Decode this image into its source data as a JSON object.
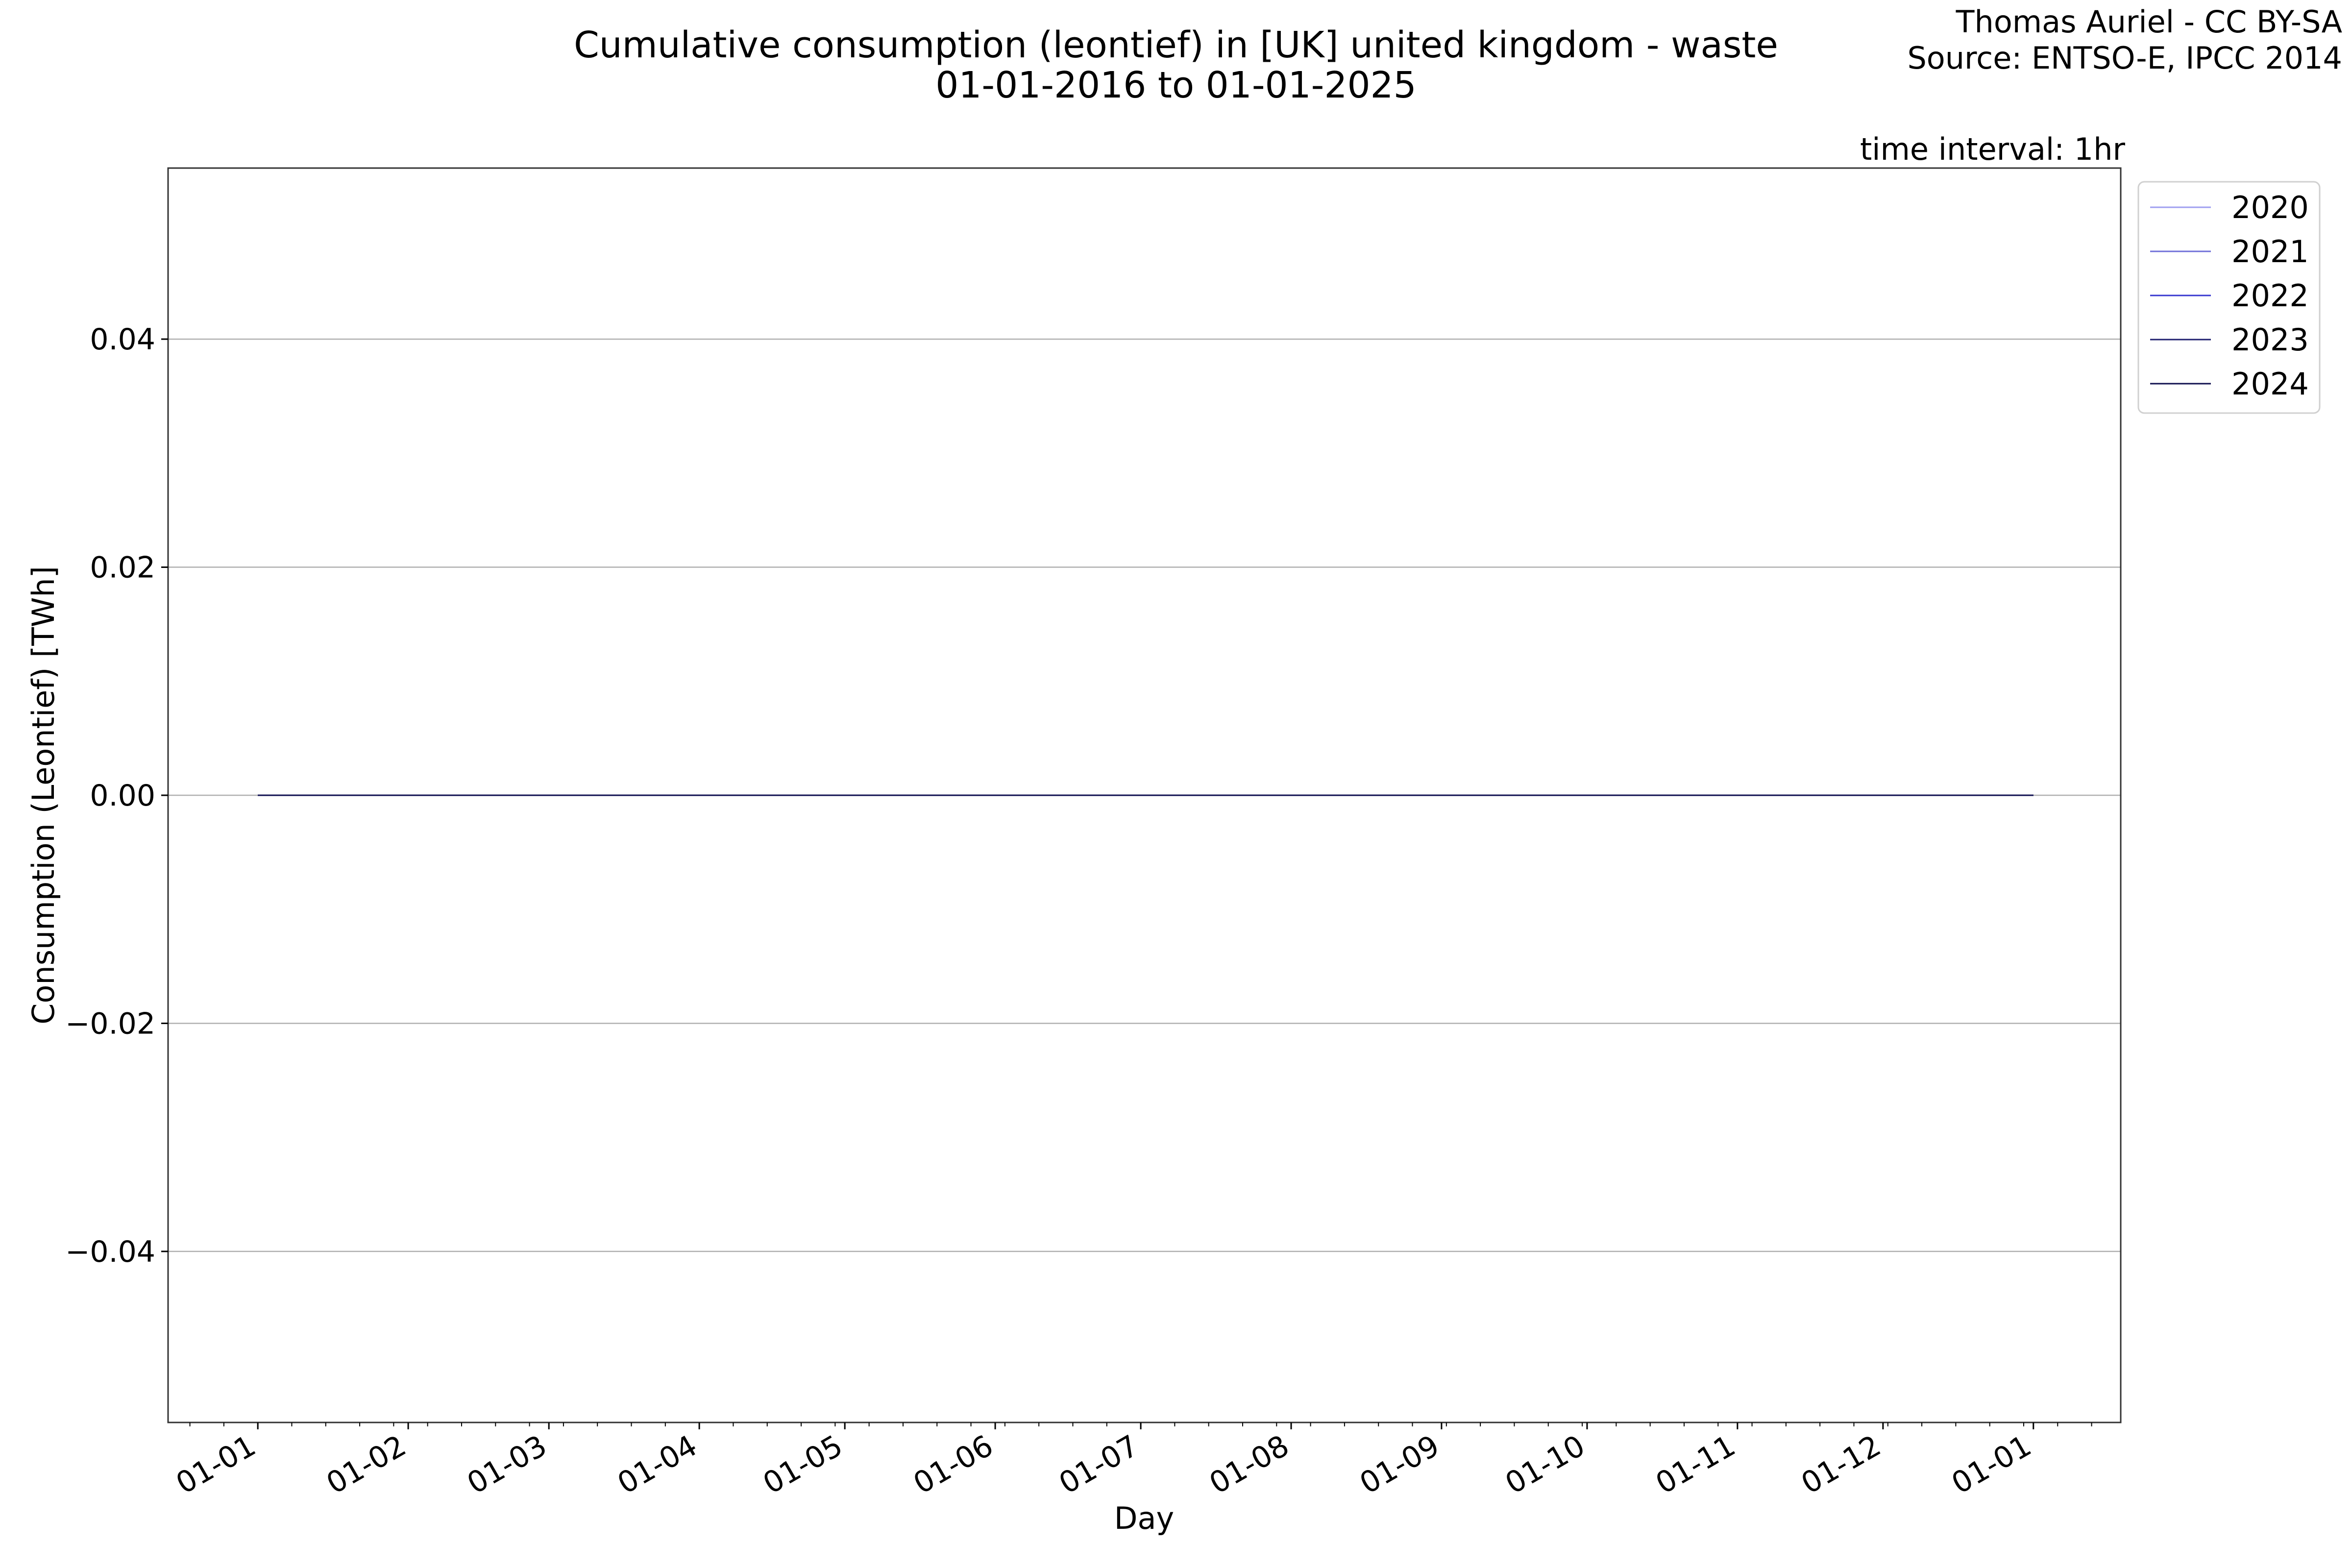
{
  "header": {
    "title_line1": "Cumulative consumption (leontief) in [UK] united kingdom - waste",
    "title_line2": "01-01-2016 to 01-01-2025",
    "credit_line1": "Thomas Auriel - CC BY-SA",
    "credit_line2": "Source: ENTSO-E, IPCC 2014",
    "interval": "time interval: 1hr"
  },
  "chart_data": {
    "type": "line",
    "title": "Cumulative consumption (leontief) in [UK] united kingdom - waste",
    "subtitle": "01-01-2016 to 01-01-2025",
    "xlabel": "Day",
    "ylabel": "Consumption (Leontief) [TWh]",
    "x_ticks": [
      "01-01",
      "01-02",
      "01-03",
      "01-04",
      "01-05",
      "01-06",
      "01-07",
      "01-08",
      "01-09",
      "01-10",
      "01-11",
      "01-12",
      "01-01"
    ],
    "x_tick_days": [
      0,
      31,
      60,
      91,
      121,
      152,
      182,
      213,
      244,
      274,
      305,
      335,
      366
    ],
    "xlim_days": [
      -18.5,
      384
    ],
    "y_ticks": [
      0.04,
      0.02,
      0.0,
      -0.02,
      -0.04
    ],
    "y_tick_labels": [
      "0.04",
      "0.02",
      "0.00",
      "−0.02",
      "−0.04"
    ],
    "ylim": [
      -0.055,
      0.055
    ],
    "grid": "horizontal",
    "legend_placement": "upper-right-outside",
    "series": [
      {
        "name": "2020",
        "color": "#9f9ff0",
        "x_days": [
          0,
          366
        ],
        "values": [
          0,
          0
        ]
      },
      {
        "name": "2021",
        "color": "#7070d8",
        "x_days": [
          0,
          366
        ],
        "values": [
          0,
          0
        ]
      },
      {
        "name": "2022",
        "color": "#3838d0",
        "x_days": [
          0,
          366
        ],
        "values": [
          0,
          0
        ]
      },
      {
        "name": "2023",
        "color": "#202070",
        "x_days": [
          0,
          366
        ],
        "values": [
          0,
          0
        ]
      },
      {
        "name": "2024",
        "color": "#101050",
        "x_days": [
          0,
          366
        ],
        "values": [
          0,
          0
        ]
      }
    ]
  }
}
